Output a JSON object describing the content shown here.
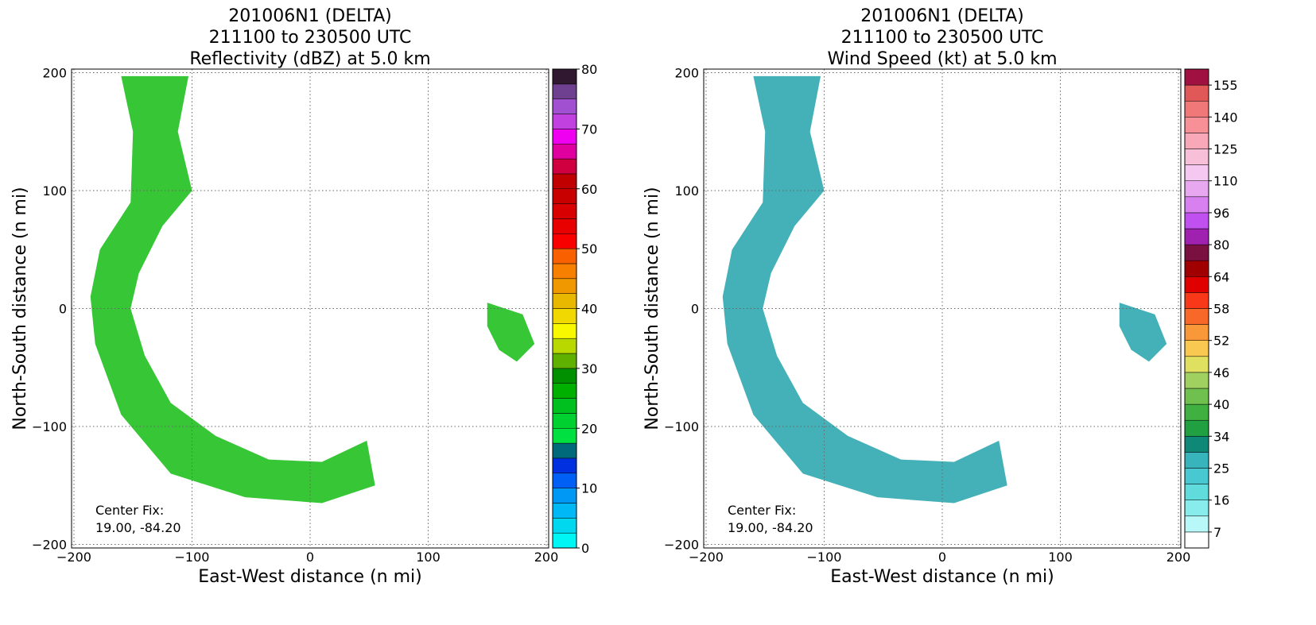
{
  "chart_data": [
    {
      "type": "contour",
      "title": [
        "201006N1 (DELTA)",
        "211100 to 230500 UTC",
        "Reflectivity (dBZ) at 5.0 km"
      ],
      "xlabel": "East-West distance (n mi)",
      "ylabel": "North-South distance (n mi)",
      "annotation": [
        "Center Fix:",
        "19.00, -84.20"
      ],
      "xlim": [
        -202,
        202
      ],
      "ylim": [
        -203,
        203
      ],
      "xticks": [
        {
          "value": -200,
          "label": "−200"
        },
        {
          "value": -100,
          "label": "−100"
        },
        0,
        100,
        200
      ],
      "yticks": [
        {
          "value": -200,
          "label": "−200"
        },
        {
          "value": -100,
          "label": "−100"
        },
        0,
        100,
        200
      ],
      "grid": true,
      "field_color": "#20c020",
      "colorbar": {
        "levels": [
          0,
          2.5,
          5,
          7.5,
          10,
          12.5,
          15,
          17.5,
          20,
          22.5,
          25,
          27.5,
          30,
          32.5,
          35,
          37.5,
          40,
          42.5,
          45,
          47.5,
          50,
          52.5,
          55,
          57.5,
          60,
          62.5,
          65,
          67.5,
          70,
          72.5,
          75,
          77.5,
          80
        ],
        "colors": [
          "#00f5f5",
          "#00d8f0",
          "#00b8f5",
          "#0098f5",
          "#0060f5",
          "#0030e0",
          "#006a7a",
          "#00e040",
          "#00d030",
          "#00c020",
          "#00b000",
          "#009000",
          "#60b000",
          "#b8d800",
          "#f8f800",
          "#f0d800",
          "#e8b800",
          "#f09800",
          "#f88000",
          "#f86000",
          "#f80000",
          "#e80000",
          "#d80000",
          "#c80000",
          "#c00000",
          "#d00040",
          "#e000a0",
          "#f000f0",
          "#c040e0",
          "#a050d0",
          "#704090",
          "#301830"
        ],
        "ticks": [
          0,
          10,
          20,
          30,
          40,
          50,
          60,
          70,
          80
        ]
      }
    },
    {
      "type": "contour",
      "title": [
        "201006N1 (DELTA)",
        "211100 to 230500 UTC",
        "Wind Speed (kt) at 5.0 km"
      ],
      "xlabel": "East-West distance (n mi)",
      "ylabel": "North-South distance (n mi)",
      "annotation": [
        "Center Fix:",
        "19.00, -84.20"
      ],
      "xlim": [
        -202,
        202
      ],
      "ylim": [
        -203,
        203
      ],
      "xticks": [
        {
          "value": -200,
          "label": "−200"
        },
        {
          "value": -100,
          "label": "−100"
        },
        0,
        100,
        200
      ],
      "yticks": [
        {
          "value": -200,
          "label": "−200"
        },
        {
          "value": -100,
          "label": "−100"
        },
        0,
        100,
        200
      ],
      "grid": true,
      "field_color": "#30a8b0",
      "colorbar": {
        "levels": [
          5,
          7,
          11.5,
          16,
          20.5,
          25,
          29.5,
          34,
          37,
          40,
          43,
          46,
          49,
          52,
          55,
          58,
          61,
          64,
          72,
          80,
          88,
          96,
          103,
          110,
          117.5,
          125,
          132.5,
          140,
          147.5,
          155,
          162.5
        ],
        "colors": [
          "#ffffff",
          "#b8f8f8",
          "#88ecec",
          "#60dcdc",
          "#48c8d0",
          "#38b4bc",
          "#108878",
          "#20a040",
          "#40b040",
          "#70c050",
          "#a0d060",
          "#e0e060",
          "#f8c850",
          "#f89838",
          "#f86828",
          "#f83818",
          "#e00000",
          "#a00000",
          "#7a1040",
          "#a020b0",
          "#c050f0",
          "#d880f0",
          "#e8a8f0",
          "#f4c8f0",
          "#f8c0d8",
          "#f8a8b8",
          "#f89098",
          "#f07878",
          "#e05858",
          "#a01040"
        ],
        "ticks": [
          7,
          16,
          25,
          34,
          40,
          46,
          52,
          58,
          64,
          80,
          96,
          110,
          125,
          140,
          155
        ]
      }
    }
  ]
}
